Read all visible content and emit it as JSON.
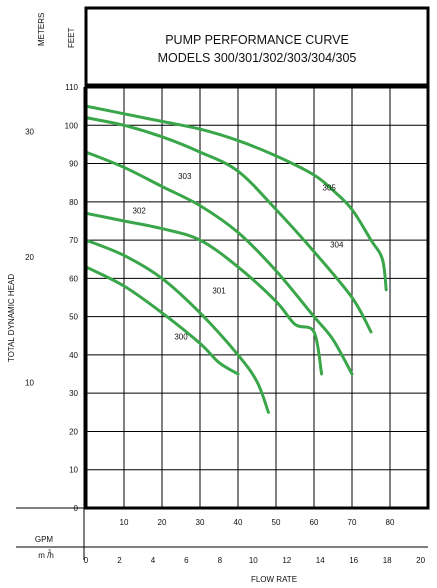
{
  "chart_data": {
    "type": "line",
    "title": "PUMP PERFORMANCE CURVE",
    "subtitle": "MODELS 300/301/302/303/304/305",
    "xlabel": "FLOW RATE",
    "ylabel": "TOTAL DYNAMIC HEAD",
    "x_unit_primary": "GPM",
    "x_unit_secondary": "m /h",
    "x_unit_secondary_superscript": "3",
    "y_unit_primary": "FEET",
    "y_unit_secondary": "METERS",
    "xlim": [
      0,
      90
    ],
    "ylim": [
      0,
      110
    ],
    "x_ticks": [
      "0",
      "10",
      "20",
      "30",
      "40",
      "50",
      "60",
      "70",
      "80"
    ],
    "x_ticks_secondary": [
      "0",
      "2",
      "4",
      "6",
      "8",
      "10",
      "12",
      "14",
      "16",
      "18",
      "20"
    ],
    "y_ticks": [
      "0",
      "10",
      "20",
      "30",
      "40",
      "50",
      "60",
      "70",
      "80",
      "90",
      "100",
      "110"
    ],
    "y_ticks_secondary": [
      "10",
      "20",
      "30"
    ],
    "grid": true,
    "line_color": "#3aa64a",
    "series": [
      {
        "name": "300",
        "x": [
          0,
          10,
          20,
          30,
          35,
          40
        ],
        "y": [
          63,
          58,
          51,
          43,
          38,
          35
        ]
      },
      {
        "name": "301",
        "x": [
          0,
          10,
          20,
          30,
          40,
          45,
          48
        ],
        "y": [
          70,
          66,
          60,
          51,
          40,
          33,
          25
        ]
      },
      {
        "name": "302",
        "x": [
          0,
          10,
          20,
          30,
          40,
          50,
          55,
          60,
          62
        ],
        "y": [
          77,
          75,
          73,
          70,
          63,
          54,
          48,
          46,
          35
        ]
      },
      {
        "name": "303",
        "x": [
          0,
          10,
          20,
          30,
          40,
          50,
          60,
          65,
          70
        ],
        "y": [
          93,
          89,
          84,
          79,
          72,
          62,
          50,
          44,
          35
        ]
      },
      {
        "name": "304",
        "x": [
          0,
          10,
          20,
          30,
          40,
          50,
          60,
          70,
          75
        ],
        "y": [
          102,
          100,
          97,
          93,
          88,
          78,
          67,
          55,
          46
        ]
      },
      {
        "name": "305",
        "x": [
          0,
          10,
          20,
          30,
          40,
          50,
          60,
          65,
          70,
          75,
          78,
          79
        ],
        "y": [
          105,
          103,
          101,
          99,
          96,
          92,
          87,
          83,
          78,
          70,
          65,
          57
        ]
      }
    ]
  }
}
